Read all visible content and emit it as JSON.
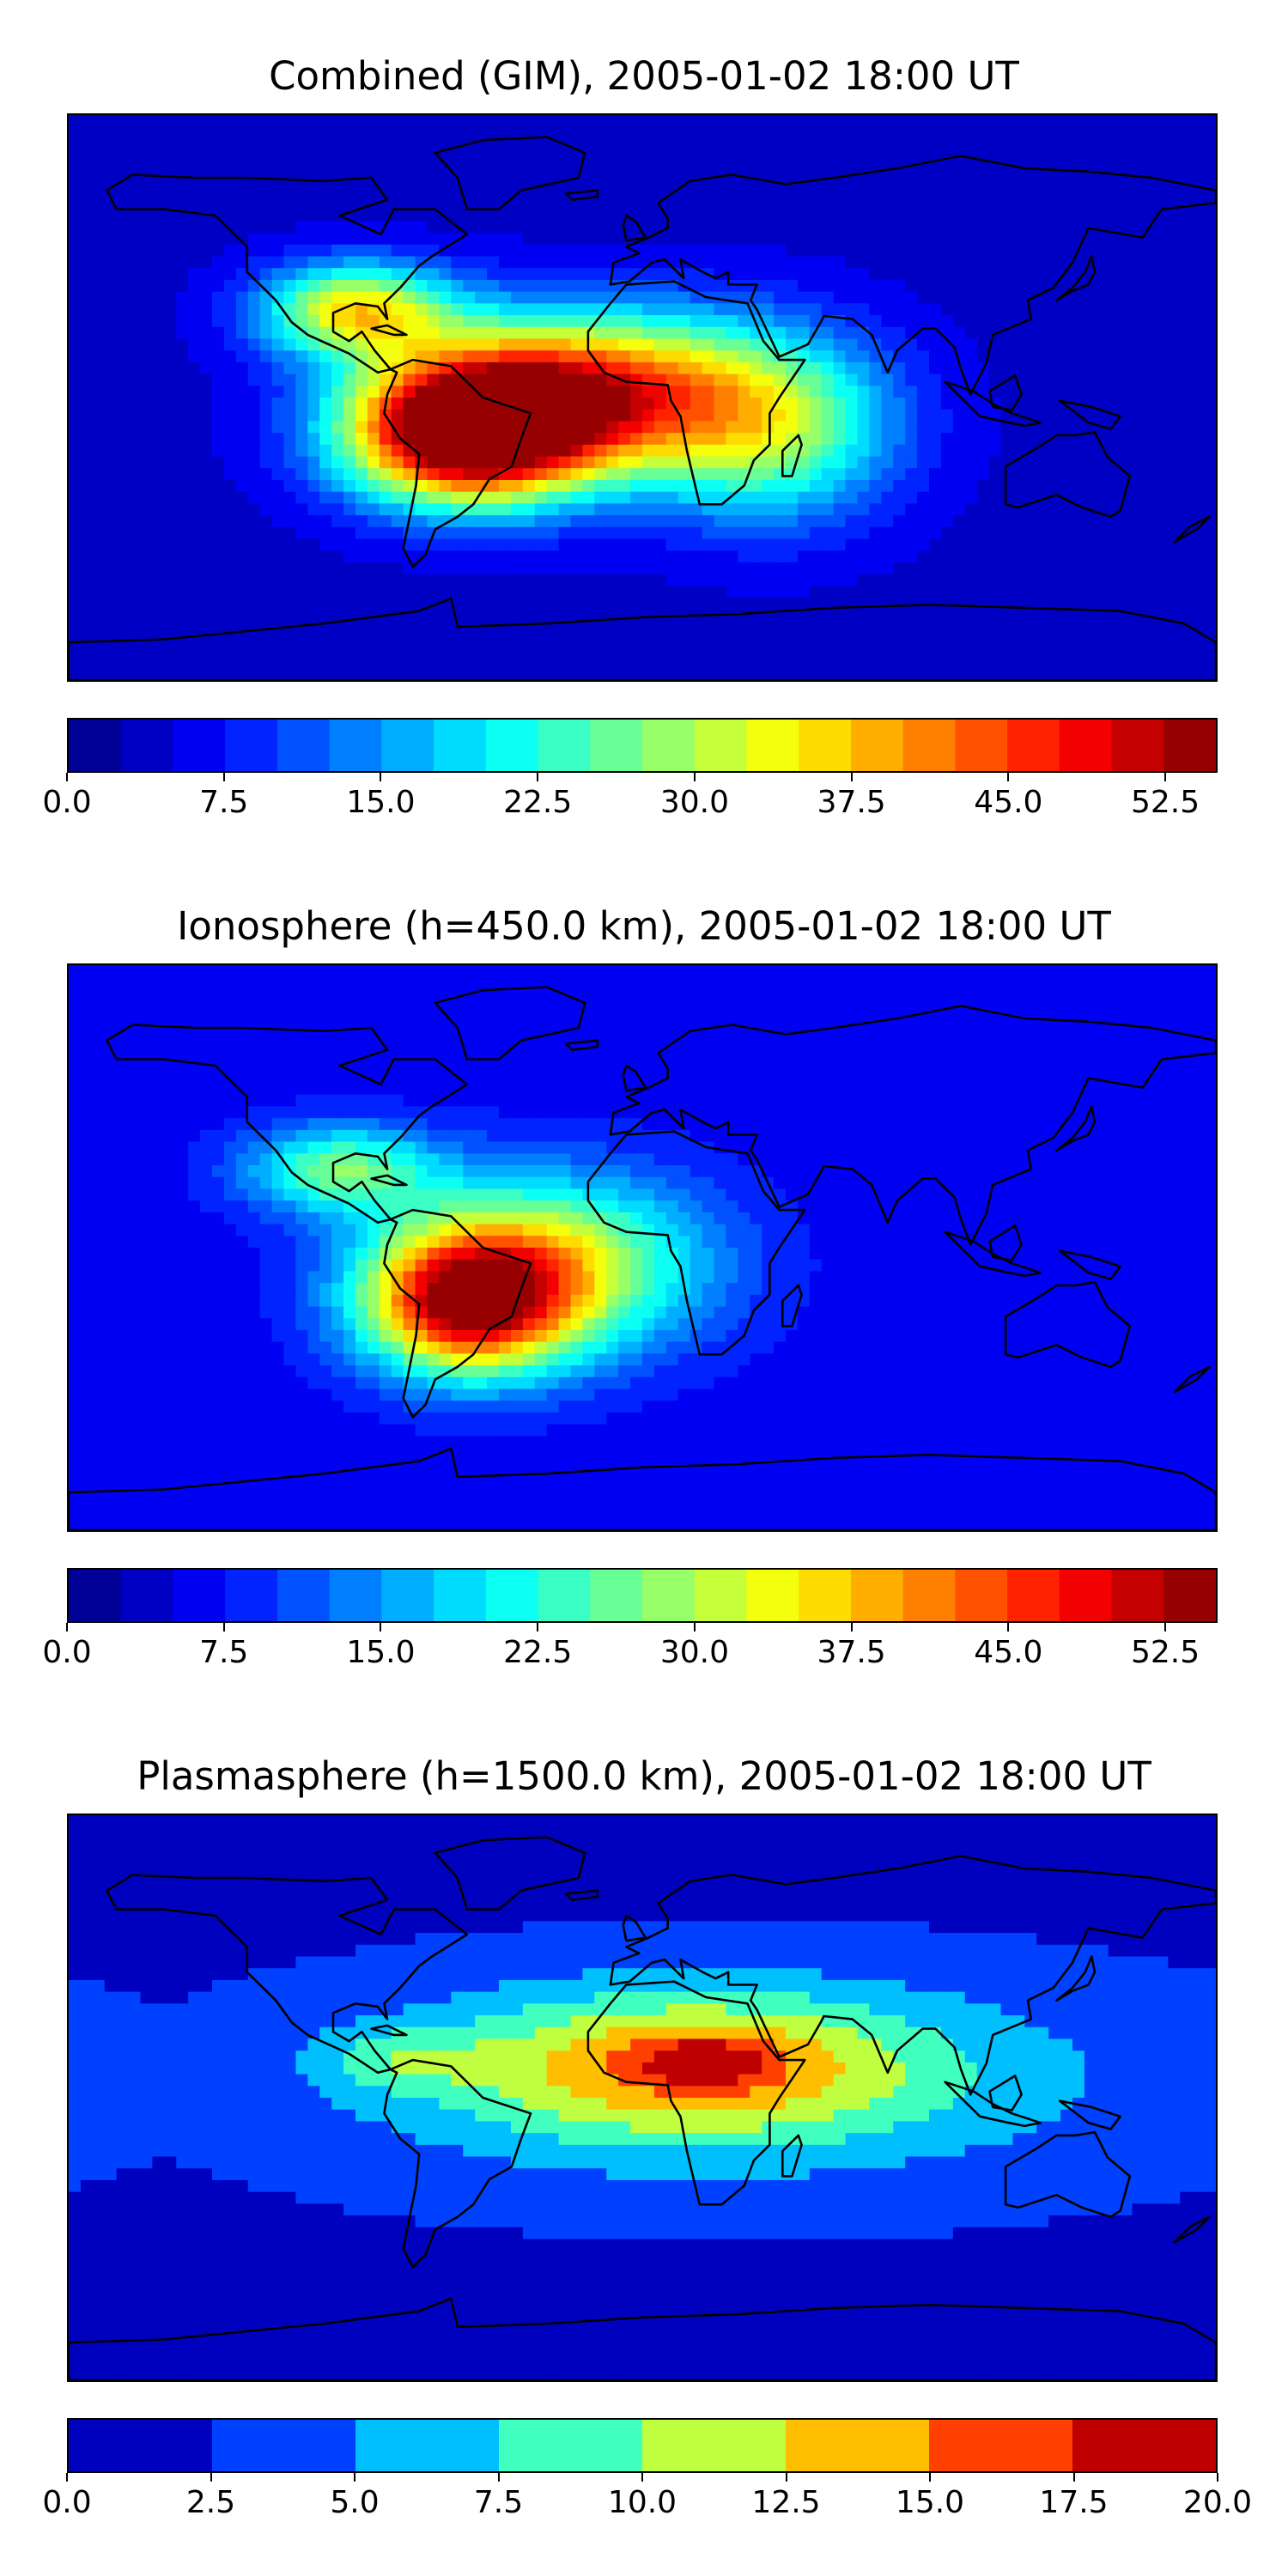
{
  "chart_data": [
    {
      "type": "heatmap",
      "title": "Combined (GIM), 2005-01-02 18:00 UT",
      "map": "world",
      "xlim": [
        -180,
        180
      ],
      "ylim": [
        -90,
        90
      ],
      "colorbar": {
        "vmin": 0.0,
        "vmax": 55.0,
        "levels": 22,
        "step": 2.5,
        "tick_labels": [
          "0.0",
          "7.5",
          "15.0",
          "22.5",
          "30.0",
          "37.5",
          "45.0",
          "52.5"
        ],
        "tick_values": [
          0.0,
          7.5,
          15.0,
          22.5,
          30.0,
          37.5,
          45.0,
          52.5
        ]
      },
      "features": [
        {
          "lon": -55,
          "lat": -12,
          "value": 52,
          "spread_lon": 38,
          "spread_lat": 22
        },
        {
          "lon": -20,
          "lat": 2,
          "value": 40,
          "spread_lon": 55,
          "spread_lat": 25
        },
        {
          "lon": -90,
          "lat": 28,
          "value": 30,
          "spread_lon": 30,
          "spread_lat": 15
        },
        {
          "lon": 40,
          "lat": -10,
          "value": 22,
          "spread_lon": 40,
          "spread_lat": 30
        }
      ],
      "background_value": 4
    },
    {
      "type": "heatmap",
      "title": "Ionosphere  (h=450.0 km), 2005-01-02 18:00 UT",
      "map": "world",
      "xlim": [
        -180,
        180
      ],
      "ylim": [
        -90,
        90
      ],
      "colorbar": {
        "vmin": 0.0,
        "vmax": 55.0,
        "levels": 22,
        "step": 2.5,
        "tick_labels": [
          "0.0",
          "7.5",
          "15.0",
          "22.5",
          "30.0",
          "37.5",
          "45.0",
          "52.5"
        ],
        "tick_values": [
          0.0,
          7.5,
          15.0,
          22.5,
          30.0,
          37.5,
          45.0,
          52.5
        ]
      },
      "features": [
        {
          "lon": -55,
          "lat": -18,
          "value": 40,
          "spread_lon": 32,
          "spread_lat": 22
        },
        {
          "lon": -30,
          "lat": -5,
          "value": 26,
          "spread_lon": 50,
          "spread_lat": 28
        },
        {
          "lon": -95,
          "lat": 25,
          "value": 20,
          "spread_lon": 30,
          "spread_lat": 14
        }
      ],
      "background_value": 6
    },
    {
      "type": "heatmap",
      "title": "Plasmasphere (h=1500.0 km), 2005-01-02 18:00 UT",
      "map": "world",
      "xlim": [
        -180,
        180
      ],
      "ylim": [
        -90,
        90
      ],
      "colorbar": {
        "vmin": 0.0,
        "vmax": 20.0,
        "levels": 8,
        "step": 2.5,
        "tick_labels": [
          "0.0",
          "2.5",
          "5.0",
          "7.5",
          "10.0",
          "12.5",
          "15.0",
          "17.5",
          "20.0"
        ],
        "tick_values": [
          0.0,
          2.5,
          5.0,
          7.5,
          10.0,
          12.5,
          15.0,
          17.5,
          20.0
        ]
      },
      "features": [
        {
          "lon": 15,
          "lat": 10,
          "value": 10,
          "spread_lon": 70,
          "spread_lat": 22
        },
        {
          "lon": 20,
          "lat": 12,
          "value": 5,
          "spread_lon": 18,
          "spread_lat": 7
        },
        {
          "lon": -75,
          "lat": 12,
          "value": 4,
          "spread_lon": 25,
          "spread_lat": 10
        },
        {
          "lon": 30,
          "lat": 5,
          "value": 5,
          "spread_lon": 160,
          "spread_lat": 40
        }
      ],
      "background_value": 1.5
    }
  ]
}
